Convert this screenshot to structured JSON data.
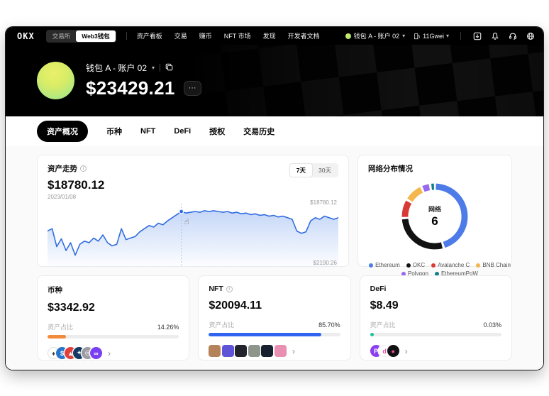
{
  "navbar": {
    "logo": "OKX",
    "toggle": {
      "exchange": "交易所",
      "web3": "Web3钱包"
    },
    "menu": [
      "资产看板",
      "交易",
      "赚币",
      "NFT 市场",
      "发现",
      "开发者文档"
    ],
    "wallet_selector": "钱包 A - 账户 02",
    "gas": "11Gwei"
  },
  "header": {
    "wallet_name": "钱包 A - 账户 02",
    "balance": "$23429.21",
    "more": "···"
  },
  "tabs": [
    {
      "label": "资产概况",
      "active": true
    },
    {
      "label": "币种",
      "active": false
    },
    {
      "label": "NFT",
      "active": false
    },
    {
      "label": "DeFi",
      "active": false
    },
    {
      "label": "授权",
      "active": false
    },
    {
      "label": "交易历史",
      "active": false
    }
  ],
  "trend_card": {
    "title": "资产走势",
    "value": "$18780.12",
    "date": "2023/01/08",
    "range_7d": "7天",
    "range_30d": "30天",
    "max_label": "$18780.12",
    "min_label": "$2190.26"
  },
  "network_card": {
    "title": "网络分布情况",
    "center_label": "网络",
    "center_value": "6"
  },
  "chart_data": [
    {
      "id": "asset_trend",
      "type": "line",
      "title": "资产走势",
      "current_value": 18780.12,
      "date": "2023/01/08",
      "range_selected": "7天",
      "ylim": [
        2190.26,
        18780.12
      ],
      "max_label": "$18780.12",
      "min_label": "$2190.26",
      "crosshair_index": 29,
      "line_color": "#2e6be0",
      "points": [
        45,
        48,
        25,
        35,
        20,
        30,
        14,
        28,
        32,
        30,
        36,
        32,
        40,
        30,
        26,
        28,
        48,
        34,
        36,
        38,
        44,
        48,
        52,
        50,
        55,
        53,
        58,
        62,
        66,
        70,
        68,
        69,
        70,
        69,
        71,
        70,
        71,
        70,
        69,
        70,
        68,
        69,
        67,
        68,
        66,
        67,
        65,
        66,
        64,
        65,
        63,
        64,
        62,
        60,
        45,
        42,
        44,
        58,
        62,
        60,
        64,
        62,
        60,
        62
      ]
    },
    {
      "id": "network_distribution",
      "type": "donut",
      "title": "网络分布情况",
      "center_label": "网络",
      "center_value": 6,
      "legend_position": "bottom",
      "segments": [
        {
          "name": "Ethereum",
          "color": "#4d7ce8",
          "fraction": 0.455
        },
        {
          "name": "OKC",
          "color": "#121212",
          "fraction": 0.285
        },
        {
          "name": "Avalanche C",
          "color": "#d93a36",
          "fraction": 0.095
        },
        {
          "name": "BNB Chain",
          "color": "#f3b74e",
          "fraction": 0.095
        },
        {
          "name": "Polygon",
          "color": "#9a68ee",
          "fraction": 0.045
        },
        {
          "name": "EthereumPoW",
          "color": "#0f7f8f",
          "fraction": 0.025
        }
      ]
    }
  ],
  "summary_cards": [
    {
      "title": "币种",
      "value": "$3342.92",
      "share_label": "资产占比",
      "share_text": "14.26%",
      "share_percent": 14.26,
      "bar_color": "#f28b3b",
      "icons": [
        {
          "name": "eth-coin-icon",
          "bg": "#ffffff",
          "fg": "#3c3c46",
          "glyph": "♦",
          "border": "#dddddd"
        },
        {
          "name": "usdc-coin-icon",
          "bg": "#2775ca",
          "fg": "#ffffff",
          "glyph": "$"
        },
        {
          "name": "avax-coin-icon",
          "bg": "#e0413d",
          "fg": "#ffffff",
          "glyph": "▲"
        },
        {
          "name": "okc-coin-icon",
          "bg": "#123a63",
          "fg": "#ffffff",
          "glyph": "✦"
        },
        {
          "name": "gray-coin-icon",
          "bg": "#9b9ba1",
          "fg": "#ffffff",
          "glyph": "◎"
        },
        {
          "name": "polygon-coin-icon",
          "bg": "#7a3ff2",
          "fg": "#ffffff",
          "glyph": "∞"
        }
      ]
    },
    {
      "title": "NFT",
      "value": "$20094.11",
      "share_label": "资产占比",
      "share_text": "85.70%",
      "share_percent": 85.7,
      "bar_color": "#2e64f0",
      "thumbs": [
        "#b5835a",
        "#5f54d8",
        "#23232b",
        "#8d958d",
        "#16202e",
        "#e98fb1"
      ]
    },
    {
      "title": "DeFi",
      "value": "$8.49",
      "share_label": "资产占比",
      "share_text": "0.03%",
      "share_percent": 0.03,
      "bar_color": "#14c39a",
      "icons": [
        {
          "name": "defi-protocol-icon",
          "bg": "#8b3ff0",
          "fg": "#ffffff",
          "glyph": "P"
        },
        {
          "name": "defi-protocol-icon",
          "bg": "#ffffff",
          "fg": "#e84fa0",
          "glyph": "d",
          "border": "#eeeeee"
        },
        {
          "name": "defi-protocol-icon",
          "bg": "#111111",
          "fg": "#e84fa0",
          "glyph": "●"
        }
      ]
    }
  ]
}
